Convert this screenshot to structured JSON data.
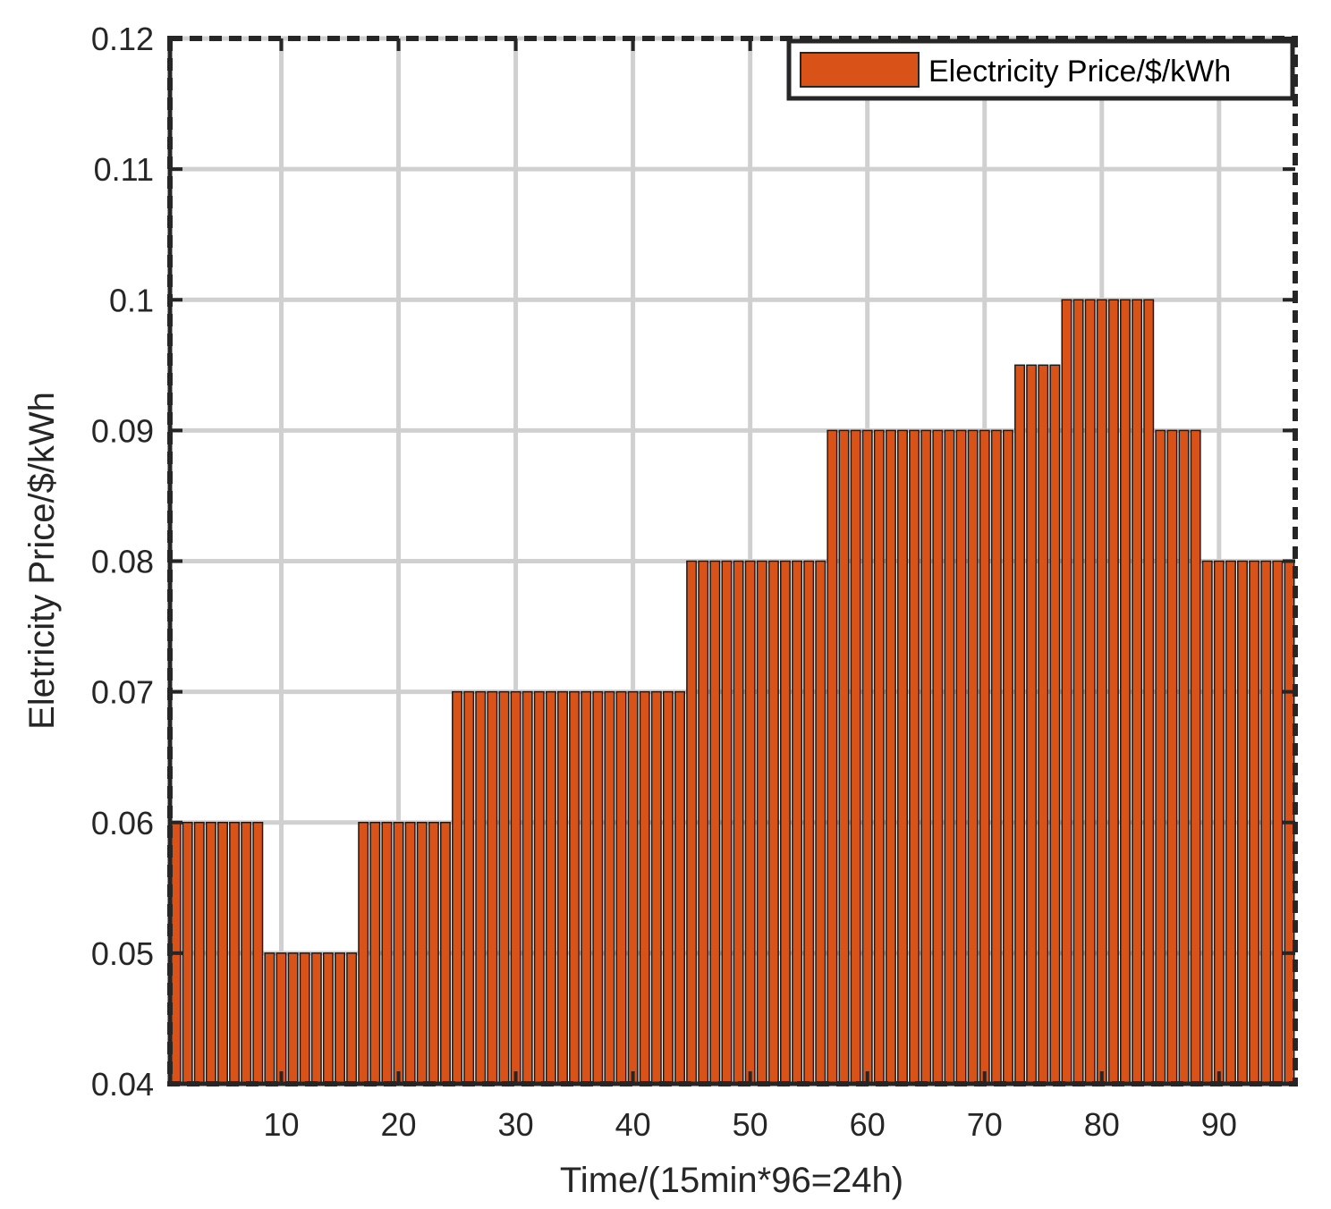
{
  "chart_data": {
    "type": "bar",
    "title": "",
    "xlabel": "Time/(15min*96=24h)",
    "ylabel": "Eletricity Price/$/kWh",
    "xlim": [
      0.5,
      96.5
    ],
    "ylim": [
      0.04,
      0.12
    ],
    "x_ticks": [
      10,
      20,
      30,
      40,
      50,
      60,
      70,
      80,
      90
    ],
    "y_ticks": [
      0.04,
      0.05,
      0.06,
      0.07,
      0.08,
      0.09,
      0.1,
      0.11,
      0.12
    ],
    "x_tick_labels": [
      "10",
      "20",
      "30",
      "40",
      "50",
      "60",
      "70",
      "80",
      "90"
    ],
    "y_tick_labels": [
      "0.04",
      "0.05",
      "0.06",
      "0.07",
      "0.08",
      "0.09",
      "0.1",
      "0.11",
      "0.12"
    ],
    "grid": true,
    "legend_position": "top-right",
    "bar_color": "#D95319",
    "series": [
      {
        "name": "Electricity Price/$/kWh",
        "x": [
          1,
          2,
          3,
          4,
          5,
          6,
          7,
          8,
          9,
          10,
          11,
          12,
          13,
          14,
          15,
          16,
          17,
          18,
          19,
          20,
          21,
          22,
          23,
          24,
          25,
          26,
          27,
          28,
          29,
          30,
          31,
          32,
          33,
          34,
          35,
          36,
          37,
          38,
          39,
          40,
          41,
          42,
          43,
          44,
          45,
          46,
          47,
          48,
          49,
          50,
          51,
          52,
          53,
          54,
          55,
          56,
          57,
          58,
          59,
          60,
          61,
          62,
          63,
          64,
          65,
          66,
          67,
          68,
          69,
          70,
          71,
          72,
          73,
          74,
          75,
          76,
          77,
          78,
          79,
          80,
          81,
          82,
          83,
          84,
          85,
          86,
          87,
          88,
          89,
          90,
          91,
          92,
          93,
          94,
          95,
          96
        ],
        "values": [
          0.06,
          0.06,
          0.06,
          0.06,
          0.06,
          0.06,
          0.06,
          0.06,
          0.05,
          0.05,
          0.05,
          0.05,
          0.05,
          0.05,
          0.05,
          0.05,
          0.06,
          0.06,
          0.06,
          0.06,
          0.06,
          0.06,
          0.06,
          0.06,
          0.07,
          0.07,
          0.07,
          0.07,
          0.07,
          0.07,
          0.07,
          0.07,
          0.07,
          0.07,
          0.07,
          0.07,
          0.07,
          0.07,
          0.07,
          0.07,
          0.07,
          0.07,
          0.07,
          0.07,
          0.08,
          0.08,
          0.08,
          0.08,
          0.08,
          0.08,
          0.08,
          0.08,
          0.08,
          0.08,
          0.08,
          0.08,
          0.09,
          0.09,
          0.09,
          0.09,
          0.09,
          0.09,
          0.09,
          0.09,
          0.09,
          0.09,
          0.09,
          0.09,
          0.09,
          0.09,
          0.09,
          0.09,
          0.095,
          0.095,
          0.095,
          0.095,
          0.1,
          0.1,
          0.1,
          0.1,
          0.1,
          0.1,
          0.1,
          0.1,
          0.09,
          0.09,
          0.09,
          0.09,
          0.08,
          0.08,
          0.08,
          0.08,
          0.08,
          0.08,
          0.08,
          0.08
        ]
      }
    ]
  }
}
